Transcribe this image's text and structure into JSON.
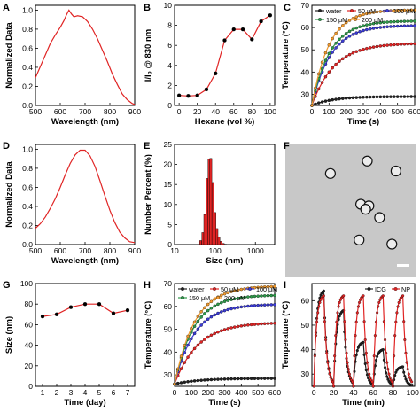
{
  "panels": {
    "A": {
      "letter": "A"
    },
    "B": {
      "letter": "B"
    },
    "C": {
      "letter": "C"
    },
    "D": {
      "letter": "D"
    },
    "E": {
      "letter": "E"
    },
    "F": {
      "letter": "F"
    },
    "G": {
      "letter": "G"
    },
    "H": {
      "letter": "H"
    },
    "I": {
      "letter": "I"
    }
  },
  "colors": {
    "red": "#e02424",
    "black": "#222222",
    "purple": "#3b3bd6",
    "green": "#2e9a4a",
    "orange": "#f29a2e",
    "tem_bg": "#c8c8c8"
  },
  "chart_data": [
    {
      "panel": "A",
      "type": "line",
      "xlabel": "Wavelength (nm)",
      "ylabel": "Normalized Data",
      "xlim": [
        500,
        900
      ],
      "ylim": [
        0,
        1.05
      ],
      "xticks": [
        500,
        600,
        700,
        800,
        900
      ],
      "yticks": [
        0.0,
        0.2,
        0.4,
        0.6,
        0.8,
        1.0
      ],
      "series": [
        {
          "color": "red",
          "x": [
            500,
            520,
            540,
            560,
            580,
            600,
            615,
            625,
            635,
            645,
            655,
            670,
            690,
            710,
            730,
            750,
            770,
            790,
            810,
            830,
            850,
            870,
            890,
            900
          ],
          "y": [
            0.29,
            0.41,
            0.53,
            0.65,
            0.74,
            0.82,
            0.89,
            0.95,
            1.0,
            0.96,
            0.93,
            0.94,
            0.93,
            0.88,
            0.8,
            0.7,
            0.58,
            0.46,
            0.33,
            0.22,
            0.12,
            0.06,
            0.02,
            0.01
          ]
        }
      ]
    },
    {
      "panel": "B",
      "type": "line",
      "xlabel": "Hexane (vol %)",
      "ylabel": "I/I₀ @ 830 nm",
      "xlim": [
        -5,
        105
      ],
      "ylim": [
        0,
        10
      ],
      "xticks": [
        0,
        20,
        40,
        60,
        80,
        100
      ],
      "yticks": [
        0,
        2,
        4,
        6,
        8,
        10
      ],
      "series": [
        {
          "color": "red",
          "x": [
            0,
            10,
            20,
            30,
            40,
            50,
            60,
            70,
            80,
            90,
            100
          ],
          "y": [
            1.0,
            0.95,
            1.0,
            1.6,
            3.2,
            6.5,
            7.6,
            7.6,
            6.6,
            8.4,
            9.0
          ]
        }
      ]
    },
    {
      "panel": "C",
      "type": "line",
      "xlabel": "Time (s)",
      "ylabel": "Temperature (°C)",
      "xlim": [
        0,
        600
      ],
      "ylim": [
        25,
        70
      ],
      "xticks": [
        0,
        100,
        200,
        300,
        400,
        500,
        600
      ],
      "yticks": [
        30,
        40,
        50,
        60,
        70
      ],
      "legend": [
        "water",
        "50 μM",
        "100 μM",
        "150 μM",
        "200 μM"
      ],
      "series": [
        {
          "name": "water",
          "color": "black",
          "start": 25.0,
          "plateau": 29.0,
          "tau": 120
        },
        {
          "name": "50 μM",
          "color": "red",
          "start": 25.0,
          "plateau": 53.0,
          "tau": 130
        },
        {
          "name": "100 μM",
          "color": "purple",
          "start": 25.0,
          "plateau": 61.0,
          "tau": 110
        },
        {
          "name": "150 μM",
          "color": "green",
          "start": 25.0,
          "plateau": 63.0,
          "tau": 105
        },
        {
          "name": "200 μM",
          "color": "orange",
          "start": 25.0,
          "plateau": 68.0,
          "tau": 100
        }
      ]
    },
    {
      "panel": "D",
      "type": "line",
      "xlabel": "Wavelength (nm)",
      "ylabel": "Normalized Data",
      "xlim": [
        500,
        900
      ],
      "ylim": [
        0,
        1.05
      ],
      "xticks": [
        500,
        600,
        700,
        800,
        900
      ],
      "yticks": [
        0.0,
        0.2,
        0.4,
        0.6,
        0.8,
        1.0
      ],
      "series": [
        {
          "color": "red",
          "x": [
            500,
            520,
            540,
            560,
            580,
            600,
            620,
            640,
            660,
            680,
            700,
            720,
            740,
            760,
            780,
            800,
            820,
            840,
            860,
            880,
            900
          ],
          "y": [
            0.17,
            0.22,
            0.29,
            0.38,
            0.48,
            0.6,
            0.73,
            0.85,
            0.94,
            0.99,
            0.99,
            0.93,
            0.82,
            0.67,
            0.51,
            0.36,
            0.23,
            0.13,
            0.07,
            0.03,
            0.02
          ]
        }
      ]
    },
    {
      "panel": "E",
      "type": "bar",
      "xlabel": "Size (nm)",
      "ylabel": "Number Percent (%)",
      "xscale": "log",
      "xlim": [
        10,
        3000
      ],
      "ylim": [
        0,
        25
      ],
      "xticks": [
        10,
        100,
        1000
      ],
      "yticks": [
        0,
        5,
        10,
        15,
        20,
        25
      ],
      "series": [
        {
          "color": "red",
          "x": [
            44,
            50,
            56,
            63,
            71,
            79,
            89,
            100,
            112,
            125,
            141,
            160,
            180
          ],
          "y": [
            1.0,
            3.0,
            7.5,
            16.5,
            21.3,
            21.5,
            15.5,
            8.0,
            4.0,
            1.8,
            0.8,
            0.3,
            0.1
          ]
        }
      ]
    },
    {
      "panel": "G",
      "type": "line",
      "xlabel": "Time (day)",
      "ylabel": "Size (nm)",
      "xlim": [
        0.5,
        7.5
      ],
      "ylim": [
        0,
        100
      ],
      "xticks": [
        1,
        2,
        3,
        4,
        5,
        6,
        7
      ],
      "yticks": [
        0,
        20,
        40,
        60,
        80,
        100
      ],
      "series": [
        {
          "color": "red",
          "x": [
            1,
            2,
            3,
            4,
            5,
            6,
            7
          ],
          "y": [
            68,
            70,
            77,
            80,
            80,
            71,
            74
          ]
        }
      ]
    },
    {
      "panel": "H",
      "type": "line",
      "xlabel": "Time (s)",
      "ylabel": "Temperature (°C)",
      "xlim": [
        0,
        600
      ],
      "ylim": [
        25,
        70
      ],
      "xticks": [
        0,
        100,
        200,
        300,
        400,
        500,
        600
      ],
      "yticks": [
        30,
        40,
        50,
        60,
        70
      ],
      "legend": [
        "water",
        "50 μM",
        "100 μM",
        "150 μM",
        "200 μM"
      ],
      "series": [
        {
          "name": "water",
          "color": "black",
          "start": 26.0,
          "plateau": 28.5,
          "tau": 150
        },
        {
          "name": "50 μM",
          "color": "red",
          "start": 26.0,
          "plateau": 53.0,
          "tau": 140
        },
        {
          "name": "100 μM",
          "color": "purple",
          "start": 26.0,
          "plateau": 61.0,
          "tau": 120
        },
        {
          "name": "150 μM",
          "color": "green",
          "start": 26.0,
          "plateau": 65.0,
          "tau": 115
        },
        {
          "name": "200 μM",
          "color": "orange",
          "start": 26.0,
          "plateau": 69.0,
          "tau": 120
        }
      ]
    },
    {
      "panel": "I",
      "type": "line",
      "xlabel": "Time (min)",
      "ylabel": "Temperature (°C)",
      "xlim": [
        -2,
        102
      ],
      "ylim": [
        25,
        67
      ],
      "xticks": [
        0,
        20,
        40,
        60,
        80,
        100
      ],
      "yticks": [
        30,
        40,
        50,
        60
      ],
      "legend": [
        "ICG",
        "NP"
      ],
      "series": [
        {
          "name": "ICG",
          "color": "black",
          "start": 25,
          "peaks": [
            64,
            56,
            43,
            40,
            33
          ],
          "min_peak_ratio": 0.22
        },
        {
          "name": "NP",
          "color": "red",
          "start": 25,
          "peaks": [
            62,
            62,
            62,
            62,
            62
          ],
          "min_peak_ratio": 0.22
        }
      ]
    }
  ],
  "tem": {
    "particles": [
      [
        55,
        35
      ],
      [
        100,
        20
      ],
      [
        135,
        32
      ],
      [
        92,
        72
      ],
      [
        102,
        74
      ],
      [
        98,
        78
      ],
      [
        115,
        88
      ],
      [
        90,
        115
      ],
      [
        130,
        120
      ]
    ],
    "scale_bar": true
  }
}
